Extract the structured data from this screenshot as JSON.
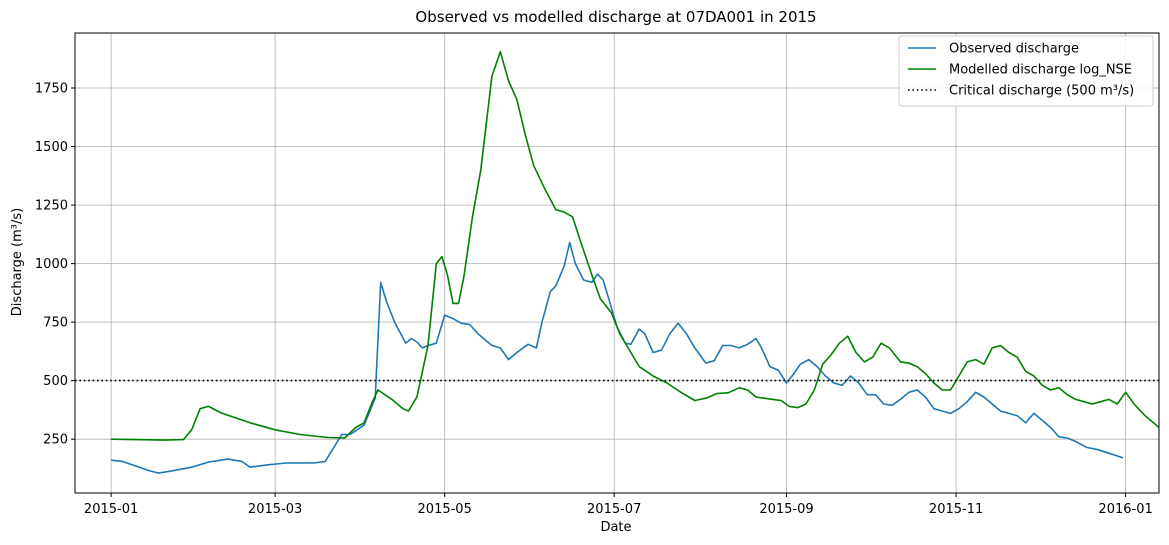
{
  "chart_data": {
    "type": "line",
    "title": "Observed vs modelled discharge at 07DA001 in 2015",
    "xlabel": "Date",
    "ylabel": "Discharge (m³/s)",
    "xlim": [
      "2014-12-19",
      "2016-01-13"
    ],
    "ylim": [
      20,
      1985
    ],
    "x_ticks": [
      "2015-01-01",
      "2015-03-01",
      "2015-05-01",
      "2015-07-01",
      "2015-09-01",
      "2015-11-01",
      "2016-01-01"
    ],
    "x_tick_labels": [
      "2015-01",
      "2015-03",
      "2015-05",
      "2015-07",
      "2015-09",
      "2015-11",
      "2016-01"
    ],
    "y_ticks": [
      250,
      500,
      750,
      1000,
      1250,
      1500,
      1750
    ],
    "grid": true,
    "legend_position": "top-right",
    "series": [
      {
        "name": "Observed discharge",
        "color": "#1f77b4",
        "points": [
          [
            "2015-01-01",
            160
          ],
          [
            "2015-01-05",
            155
          ],
          [
            "2015-01-10",
            135
          ],
          [
            "2015-01-14",
            118
          ],
          [
            "2015-01-18",
            105
          ],
          [
            "2015-01-23",
            115
          ],
          [
            "2015-01-30",
            130
          ],
          [
            "2015-02-05",
            152
          ],
          [
            "2015-02-12",
            165
          ],
          [
            "2015-02-17",
            155
          ],
          [
            "2015-02-20",
            130
          ],
          [
            "2015-02-26",
            140
          ],
          [
            "2015-03-05",
            148
          ],
          [
            "2015-03-15",
            148
          ],
          [
            "2015-03-19",
            155
          ],
          [
            "2015-03-25",
            270
          ],
          [
            "2015-03-28",
            270
          ],
          [
            "2015-04-02",
            310
          ],
          [
            "2015-04-06",
            425
          ],
          [
            "2015-04-08",
            920
          ],
          [
            "2015-04-10",
            840
          ],
          [
            "2015-04-13",
            750
          ],
          [
            "2015-04-17",
            660
          ],
          [
            "2015-04-19",
            680
          ],
          [
            "2015-04-21",
            665
          ],
          [
            "2015-04-23",
            640
          ],
          [
            "2015-04-25",
            650
          ],
          [
            "2015-04-28",
            660
          ],
          [
            "2015-05-01",
            780
          ],
          [
            "2015-05-04",
            765
          ],
          [
            "2015-05-07",
            745
          ],
          [
            "2015-05-10",
            740
          ],
          [
            "2015-05-13",
            700
          ],
          [
            "2015-05-18",
            650
          ],
          [
            "2015-05-21",
            640
          ],
          [
            "2015-05-24",
            590
          ],
          [
            "2015-05-27",
            620
          ],
          [
            "2015-05-31",
            655
          ],
          [
            "2015-06-03",
            640
          ],
          [
            "2015-06-05",
            750
          ],
          [
            "2015-06-08",
            880
          ],
          [
            "2015-06-10",
            905
          ],
          [
            "2015-06-13",
            990
          ],
          [
            "2015-06-15",
            1090
          ],
          [
            "2015-06-17",
            1000
          ],
          [
            "2015-06-20",
            930
          ],
          [
            "2015-06-23",
            920
          ],
          [
            "2015-06-25",
            955
          ],
          [
            "2015-06-27",
            930
          ],
          [
            "2015-06-29",
            850
          ],
          [
            "2015-07-02",
            730
          ],
          [
            "2015-07-05",
            660
          ],
          [
            "2015-07-07",
            655
          ],
          [
            "2015-07-10",
            720
          ],
          [
            "2015-07-12",
            700
          ],
          [
            "2015-07-15",
            620
          ],
          [
            "2015-07-18",
            630
          ],
          [
            "2015-07-21",
            700
          ],
          [
            "2015-07-24",
            745
          ],
          [
            "2015-07-27",
            700
          ],
          [
            "2015-07-30",
            640
          ],
          [
            "2015-08-03",
            575
          ],
          [
            "2015-08-06",
            585
          ],
          [
            "2015-08-09",
            650
          ],
          [
            "2015-08-12",
            650
          ],
          [
            "2015-08-15",
            640
          ],
          [
            "2015-08-18",
            655
          ],
          [
            "2015-08-21",
            680
          ],
          [
            "2015-08-23",
            640
          ],
          [
            "2015-08-26",
            560
          ],
          [
            "2015-08-29",
            545
          ],
          [
            "2015-09-01",
            490
          ],
          [
            "2015-09-03",
            520
          ],
          [
            "2015-09-06",
            570
          ],
          [
            "2015-09-09",
            590
          ],
          [
            "2015-09-12",
            560
          ],
          [
            "2015-09-15",
            520
          ],
          [
            "2015-09-18",
            490
          ],
          [
            "2015-09-21",
            480
          ],
          [
            "2015-09-24",
            520
          ],
          [
            "2015-09-27",
            490
          ],
          [
            "2015-09-30",
            440
          ],
          [
            "2015-10-03",
            440
          ],
          [
            "2015-10-06",
            400
          ],
          [
            "2015-10-09",
            395
          ],
          [
            "2015-10-12",
            420
          ],
          [
            "2015-10-15",
            450
          ],
          [
            "2015-10-18",
            460
          ],
          [
            "2015-10-21",
            430
          ],
          [
            "2015-10-24",
            380
          ],
          [
            "2015-10-27",
            370
          ],
          [
            "2015-10-30",
            360
          ],
          [
            "2015-11-02",
            380
          ],
          [
            "2015-11-05",
            410
          ],
          [
            "2015-11-08",
            450
          ],
          [
            "2015-11-11",
            430
          ],
          [
            "2015-11-14",
            400
          ],
          [
            "2015-11-17",
            370
          ],
          [
            "2015-11-20",
            360
          ],
          [
            "2015-11-23",
            350
          ],
          [
            "2015-11-26",
            320
          ],
          [
            "2015-11-29",
            360
          ],
          [
            "2015-12-02",
            330
          ],
          [
            "2015-12-05",
            300
          ],
          [
            "2015-12-08",
            260
          ],
          [
            "2015-12-11",
            255
          ],
          [
            "2015-12-14",
            240
          ],
          [
            "2015-12-18",
            215
          ],
          [
            "2015-12-22",
            205
          ],
          [
            "2015-12-26",
            190
          ],
          [
            "2015-12-31",
            170
          ]
        ]
      },
      {
        "name": "Modelled discharge log_NSE",
        "color": "#008000",
        "points": [
          [
            "2015-01-01",
            250
          ],
          [
            "2015-01-10",
            248
          ],
          [
            "2015-01-20",
            246
          ],
          [
            "2015-01-27",
            248
          ],
          [
            "2015-01-30",
            290
          ],
          [
            "2015-02-02",
            380
          ],
          [
            "2015-02-05",
            390
          ],
          [
            "2015-02-10",
            360
          ],
          [
            "2015-02-20",
            320
          ],
          [
            "2015-03-01",
            290
          ],
          [
            "2015-03-10",
            270
          ],
          [
            "2015-03-20",
            257
          ],
          [
            "2015-03-26",
            255
          ],
          [
            "2015-03-30",
            300
          ],
          [
            "2015-04-02",
            320
          ],
          [
            "2015-04-05",
            410
          ],
          [
            "2015-04-07",
            460
          ],
          [
            "2015-04-12",
            420
          ],
          [
            "2015-04-16",
            380
          ],
          [
            "2015-04-18",
            370
          ],
          [
            "2015-04-21",
            430
          ],
          [
            "2015-04-25",
            650
          ],
          [
            "2015-04-28",
            1000
          ],
          [
            "2015-04-30",
            1030
          ],
          [
            "2015-05-02",
            950
          ],
          [
            "2015-05-04",
            830
          ],
          [
            "2015-05-06",
            830
          ],
          [
            "2015-05-08",
            950
          ],
          [
            "2015-05-11",
            1200
          ],
          [
            "2015-05-14",
            1400
          ],
          [
            "2015-05-18",
            1800
          ],
          [
            "2015-05-21",
            1905
          ],
          [
            "2015-05-24",
            1780
          ],
          [
            "2015-05-27",
            1700
          ],
          [
            "2015-05-30",
            1550
          ],
          [
            "2015-06-02",
            1420
          ],
          [
            "2015-06-06",
            1320
          ],
          [
            "2015-06-10",
            1230
          ],
          [
            "2015-06-13",
            1220
          ],
          [
            "2015-06-16",
            1200
          ],
          [
            "2015-06-19",
            1090
          ],
          [
            "2015-06-23",
            950
          ],
          [
            "2015-06-26",
            850
          ],
          [
            "2015-06-30",
            790
          ],
          [
            "2015-07-03",
            700
          ],
          [
            "2015-07-06",
            640
          ],
          [
            "2015-07-10",
            560
          ],
          [
            "2015-07-15",
            520
          ],
          [
            "2015-07-20",
            490
          ],
          [
            "2015-07-25",
            450
          ],
          [
            "2015-07-30",
            415
          ],
          [
            "2015-08-03",
            425
          ],
          [
            "2015-08-07",
            445
          ],
          [
            "2015-08-11",
            448
          ],
          [
            "2015-08-15",
            470
          ],
          [
            "2015-08-18",
            460
          ],
          [
            "2015-08-21",
            430
          ],
          [
            "2015-08-24",
            425
          ],
          [
            "2015-08-27",
            420
          ],
          [
            "2015-08-30",
            415
          ],
          [
            "2015-09-02",
            390
          ],
          [
            "2015-09-05",
            385
          ],
          [
            "2015-09-08",
            400
          ],
          [
            "2015-09-11",
            460
          ],
          [
            "2015-09-14",
            570
          ],
          [
            "2015-09-17",
            610
          ],
          [
            "2015-09-20",
            660
          ],
          [
            "2015-09-23",
            690
          ],
          [
            "2015-09-26",
            620
          ],
          [
            "2015-09-29",
            580
          ],
          [
            "2015-10-02",
            600
          ],
          [
            "2015-10-05",
            660
          ],
          [
            "2015-10-08",
            640
          ],
          [
            "2015-10-12",
            580
          ],
          [
            "2015-10-15",
            575
          ],
          [
            "2015-10-18",
            560
          ],
          [
            "2015-10-21",
            530
          ],
          [
            "2015-10-24",
            490
          ],
          [
            "2015-10-27",
            460
          ],
          [
            "2015-10-30",
            460
          ],
          [
            "2015-11-02",
            520
          ],
          [
            "2015-11-05",
            580
          ],
          [
            "2015-11-08",
            590
          ],
          [
            "2015-11-11",
            570
          ],
          [
            "2015-11-14",
            640
          ],
          [
            "2015-11-17",
            650
          ],
          [
            "2015-11-20",
            620
          ],
          [
            "2015-11-23",
            600
          ],
          [
            "2015-11-26",
            540
          ],
          [
            "2015-11-29",
            520
          ],
          [
            "2015-12-02",
            480
          ],
          [
            "2015-12-05",
            460
          ],
          [
            "2015-12-08",
            470
          ],
          [
            "2015-12-11",
            440
          ],
          [
            "2015-12-14",
            420
          ],
          [
            "2015-12-17",
            410
          ],
          [
            "2015-12-20",
            400
          ],
          [
            "2015-12-23",
            410
          ],
          [
            "2015-12-26",
            420
          ],
          [
            "2015-12-29",
            400
          ],
          [
            "2016-01-01",
            450
          ],
          [
            "2016-01-04",
            400
          ],
          [
            "2016-01-08",
            350
          ],
          [
            "2016-01-13",
            300
          ]
        ]
      },
      {
        "name": "Critical discharge (500 m³/s)",
        "color": "#000000",
        "style": "dotted",
        "constant_y": 500
      }
    ]
  }
}
